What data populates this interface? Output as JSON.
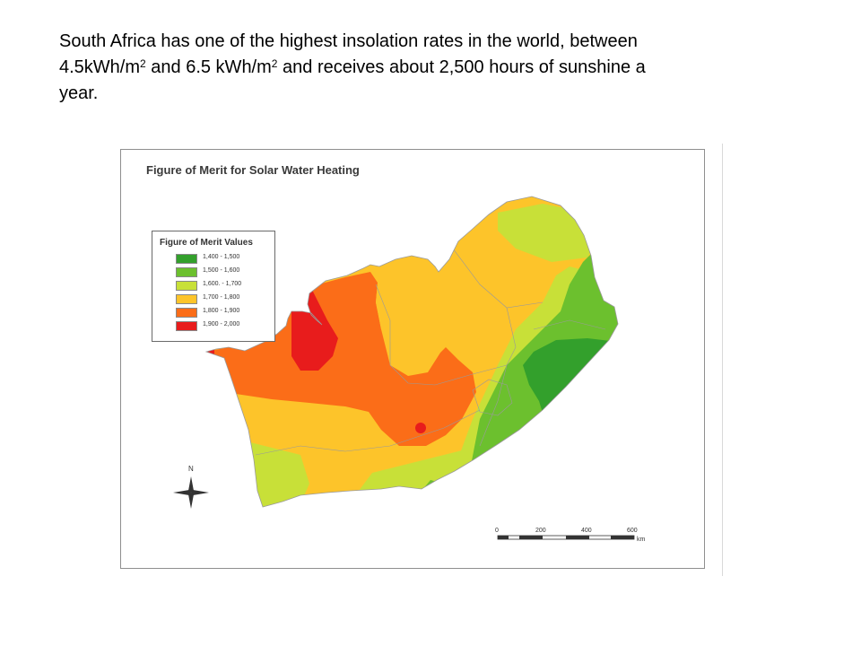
{
  "caption": {
    "line1": "South Africa has one of the highest insolation rates in the world, between",
    "l2_a": "4.5kWh/m",
    "sup_a": "2",
    "l2_b": " and 6.5 kWh/m",
    "sup_b": "2",
    "l2_c": " and receives about 2,500 hours of sunshine a",
    "line3": "year."
  },
  "map": {
    "title": "Figure of Merit for Solar Water Heating",
    "legend": {
      "title": "Figure of Merit Values",
      "items": [
        {
          "label": "1,400 - 1,500",
          "color": "#33a02c"
        },
        {
          "label": "1,500 - 1,600",
          "color": "#6cc02e"
        },
        {
          "label": "1,600. - 1,700",
          "color": "#c8e038"
        },
        {
          "label": "1,700 - 1,800",
          "color": "#fdc42a"
        },
        {
          "label": "1,800 - 1,900",
          "color": "#fb6d18"
        },
        {
          "label": "1,900 - 2,000",
          "color": "#e81c1c"
        }
      ]
    },
    "north_label": "N",
    "scale": {
      "ticks": [
        "0",
        "200",
        "400",
        "600"
      ],
      "unit": "km"
    }
  }
}
